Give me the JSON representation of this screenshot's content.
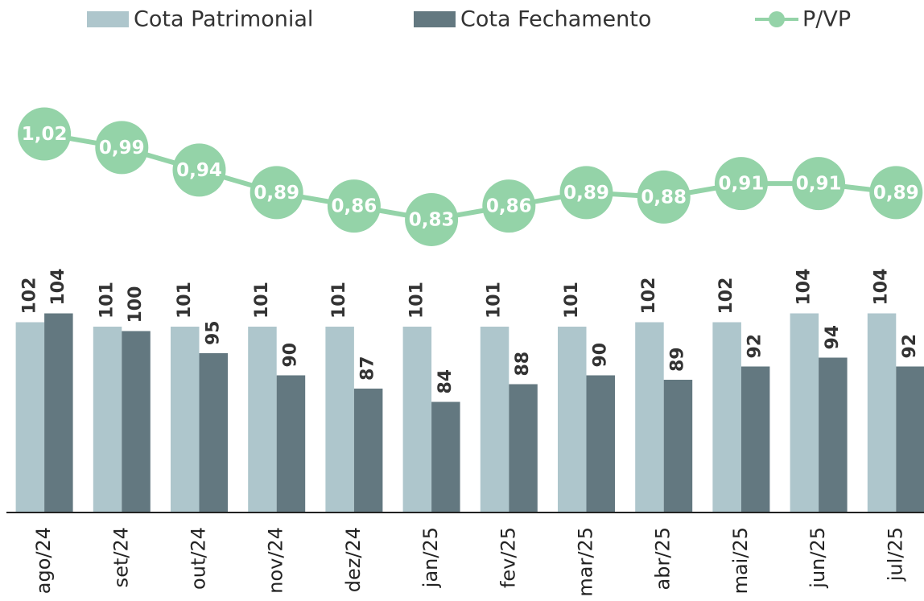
{
  "chart_data": {
    "type": "bar",
    "categories": [
      "ago/24",
      "set/24",
      "out/24",
      "nov/24",
      "dez/24",
      "jan/25",
      "fev/25",
      "mar/25",
      "abr/25",
      "mai/25",
      "jun/25",
      "jul/25"
    ],
    "series": [
      {
        "name": "Cota Patrimonial",
        "color": "#aec6cc",
        "values": [
          102,
          101,
          101,
          101,
          101,
          101,
          101,
          101,
          102,
          102,
          104,
          104
        ]
      },
      {
        "name": "Cota Fechamento",
        "color": "#637880",
        "values": [
          104,
          100,
          95,
          90,
          87,
          84,
          88,
          90,
          89,
          92,
          94,
          92
        ]
      },
      {
        "name": "P/VP",
        "color": "#94d3a8",
        "type": "line",
        "axis": "y2",
        "values": [
          1.02,
          0.99,
          0.94,
          0.89,
          0.86,
          0.83,
          0.86,
          0.89,
          0.88,
          0.91,
          0.91,
          0.89
        ],
        "value_labels": [
          "1,02",
          "0,99",
          "0,94",
          "0,89",
          "0,86",
          "0,83",
          "0,86",
          "0,89",
          "0,88",
          "0,91",
          "0,91",
          "0,89"
        ]
      }
    ],
    "ylim": [
      59,
      170
    ],
    "y2lim": [
      0.18,
      1.27
    ],
    "legend": "top"
  }
}
